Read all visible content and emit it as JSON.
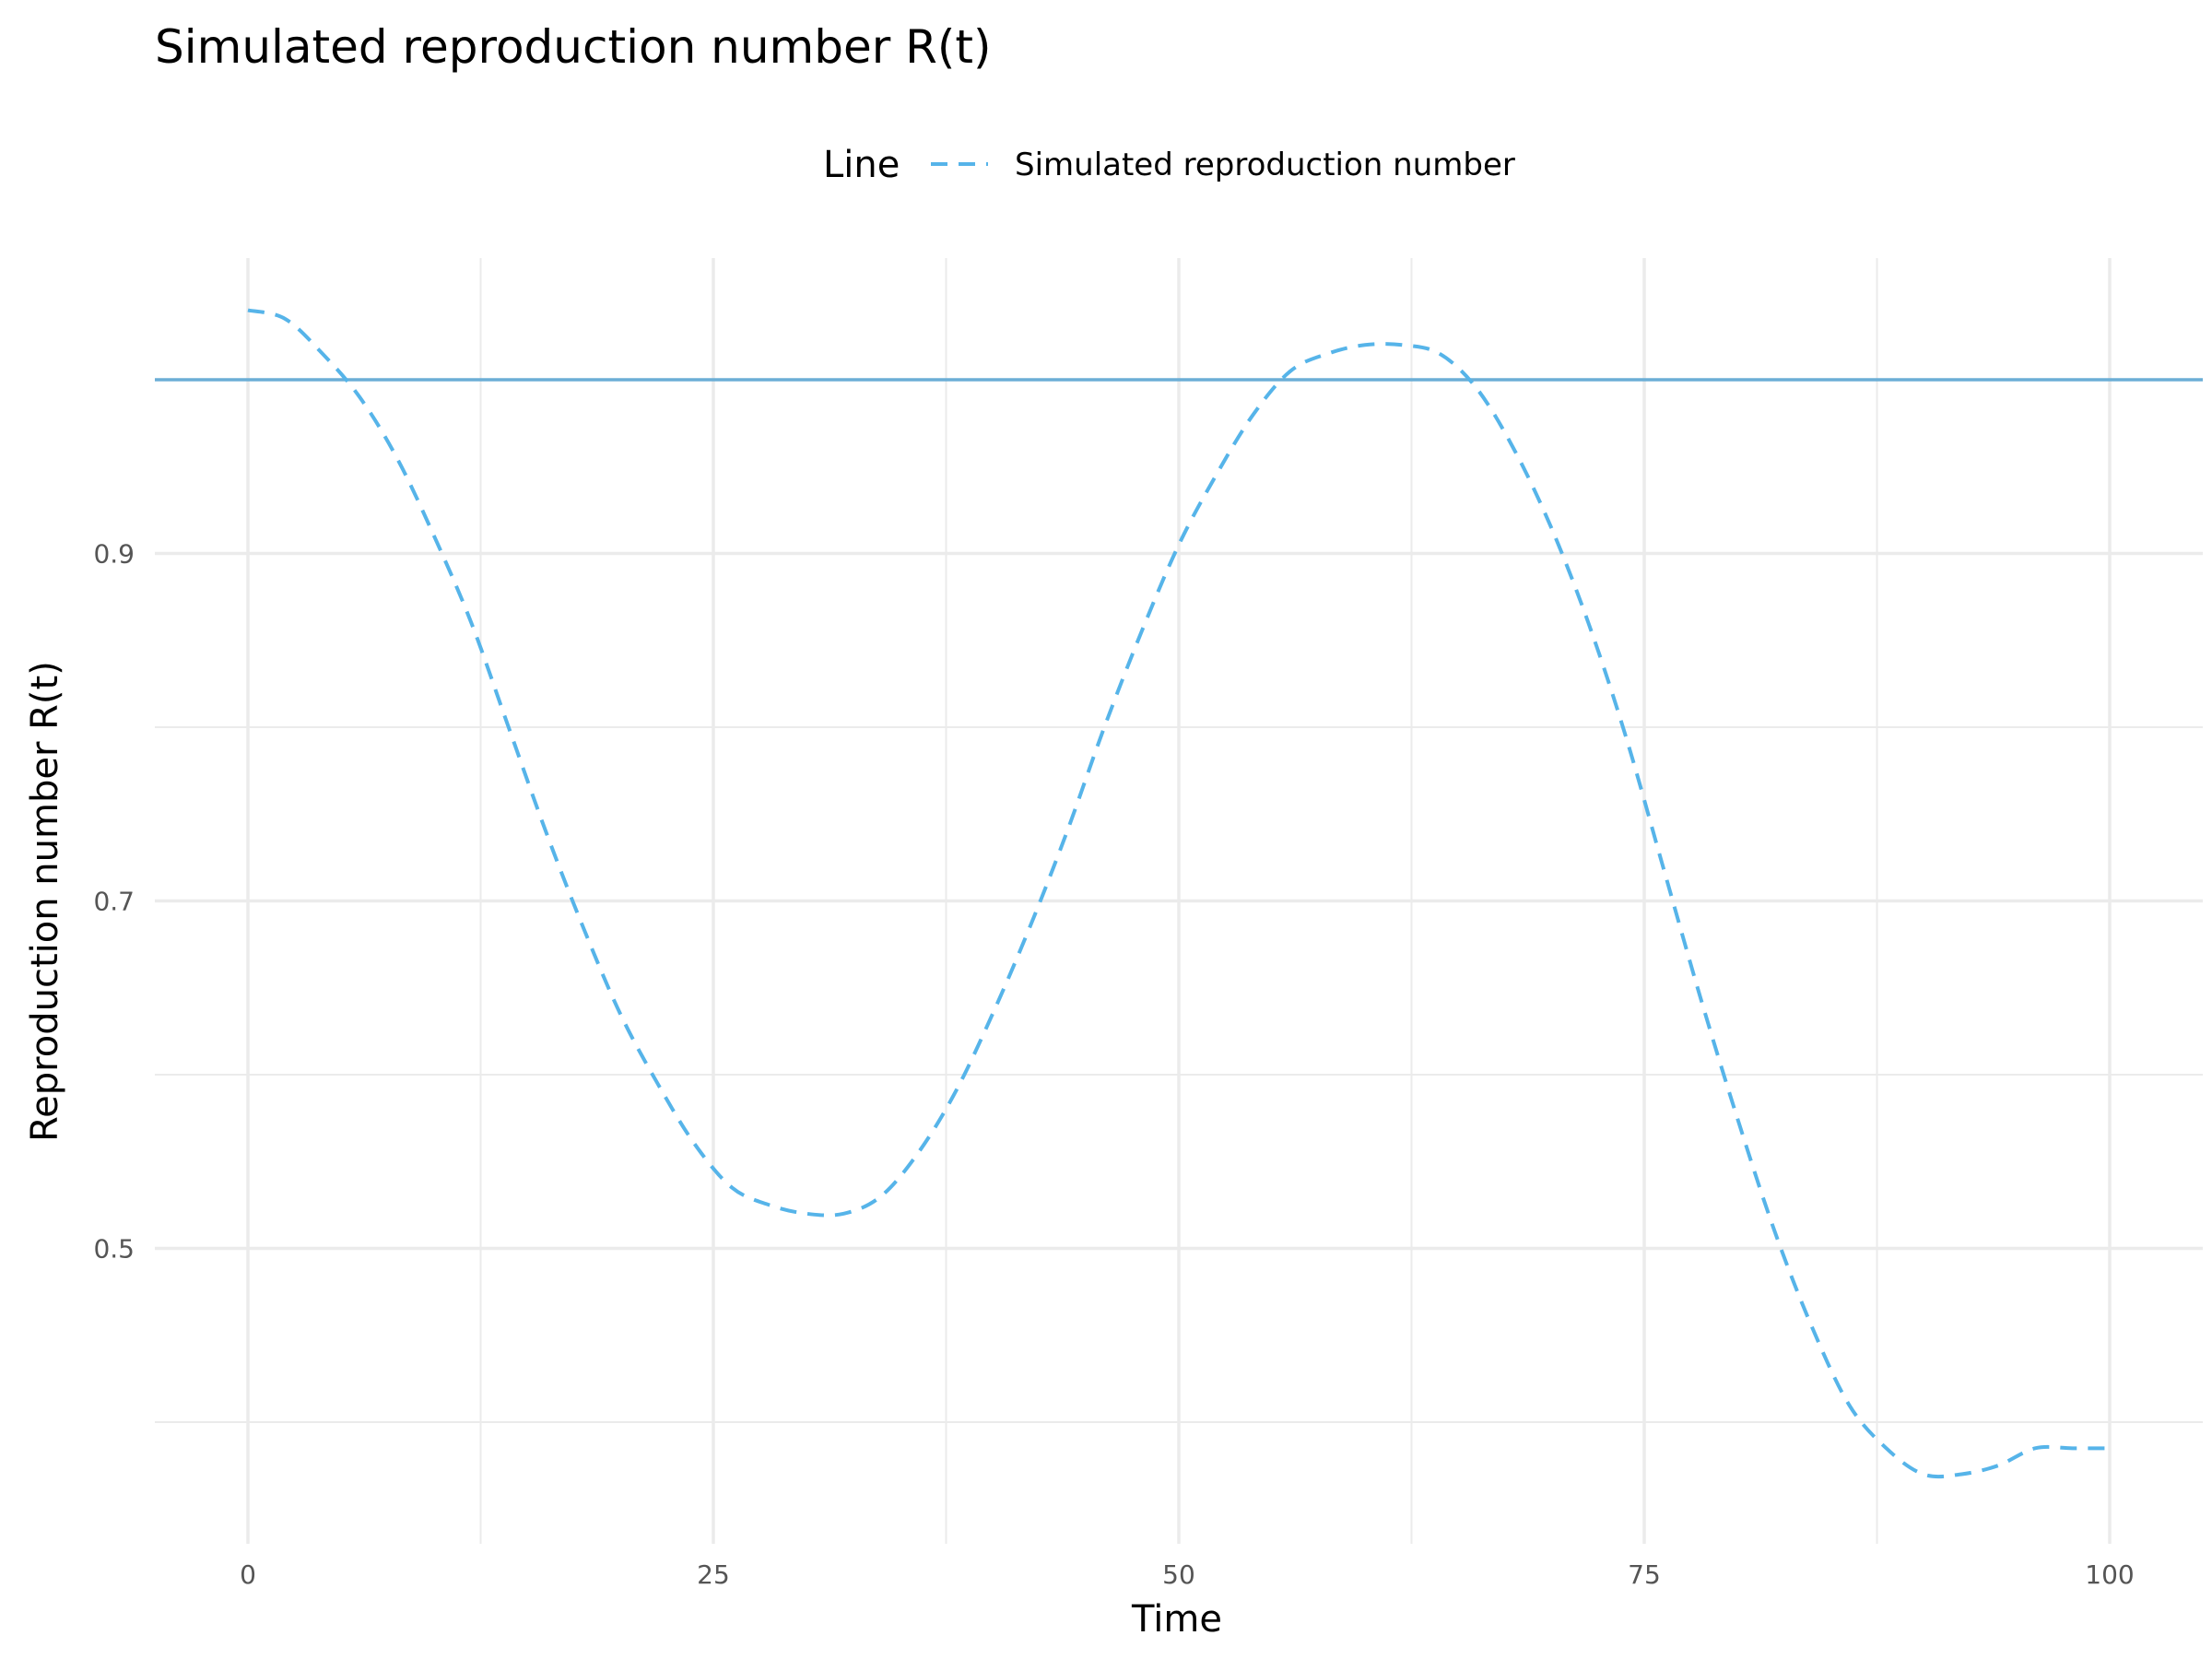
{
  "chart_data": {
    "type": "line",
    "title": "Simulated reproduction number R(t)",
    "xlabel": "Time",
    "ylabel": "Reproduction number R(t)",
    "xlim": [
      -5,
      105
    ],
    "ylim": [
      0.33,
      1.07
    ],
    "x_ticks": [
      0,
      25,
      50,
      75,
      100
    ],
    "x_tick_labels": [
      "0",
      "25",
      "50",
      "75",
      "100"
    ],
    "y_ticks": [
      0.5,
      0.7,
      0.9
    ],
    "y_tick_labels": [
      "0.5",
      "0.7",
      "0.9"
    ],
    "grid": true,
    "legend": {
      "title": "Line",
      "position": "top",
      "entries": [
        "Simulated reproduction number"
      ]
    },
    "reference_line": {
      "y": 1.0,
      "color": "#6baed6"
    },
    "series": [
      {
        "name": "Simulated reproduction number",
        "style": "dashed",
        "color": "#56b4e9",
        "x": [
          0,
          2,
          4,
          6,
          8,
          10,
          12,
          14,
          16,
          18,
          20,
          22,
          24,
          26,
          28,
          30,
          32,
          34,
          36,
          38,
          40,
          42,
          44,
          46,
          48,
          50,
          52,
          54,
          56,
          58,
          60,
          62,
          64,
          66,
          68,
          70,
          72,
          74,
          76,
          78,
          80,
          82,
          84,
          86,
          88,
          90,
          92,
          94,
          96,
          98,
          100
        ],
        "y": [
          1.04,
          1.035,
          1.015,
          0.99,
          0.955,
          0.91,
          0.86,
          0.8,
          0.74,
          0.685,
          0.635,
          0.595,
          0.56,
          0.535,
          0.525,
          0.52,
          0.52,
          0.53,
          0.555,
          0.59,
          0.635,
          0.685,
          0.74,
          0.8,
          0.855,
          0.905,
          0.945,
          0.98,
          1.005,
          1.015,
          1.02,
          1.02,
          1.015,
          0.995,
          0.96,
          0.915,
          0.86,
          0.795,
          0.72,
          0.645,
          0.575,
          0.51,
          0.455,
          0.41,
          0.385,
          0.37,
          0.37,
          0.375,
          0.385,
          0.385,
          0.385
        ]
      }
    ]
  }
}
